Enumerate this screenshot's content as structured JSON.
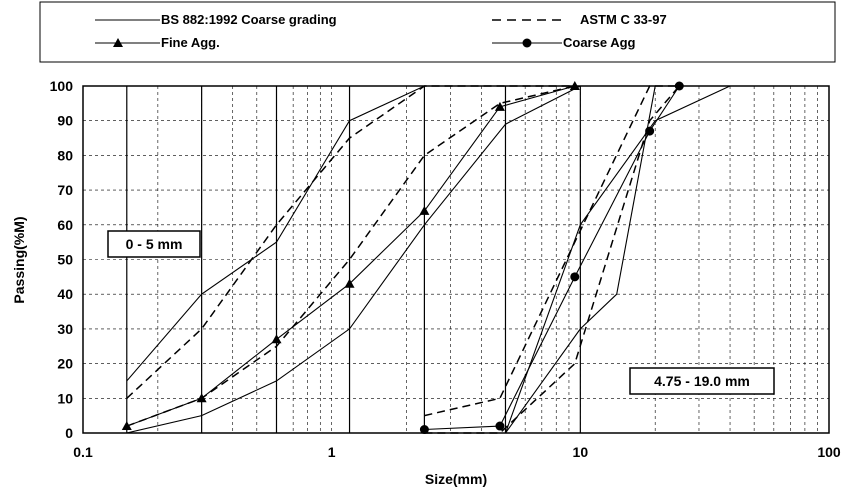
{
  "chart_data": {
    "type": "line",
    "xlabel": "Size(mm)",
    "ylabel": "Passing(%M)",
    "xscale": "log",
    "xlim": [
      0.1,
      100
    ],
    "ylim": [
      0,
      100
    ],
    "x_ticks": [
      "0.1",
      "1",
      "10",
      "100"
    ],
    "y_ticks": [
      "0",
      "10",
      "20",
      "30",
      "40",
      "50",
      "60",
      "70",
      "80",
      "90",
      "100"
    ],
    "grid": true,
    "legend": {
      "placement": "top",
      "entries": [
        {
          "label": "BS 882:1992 Coarse grading",
          "style": "solid"
        },
        {
          "label": "ASTM C 33-97",
          "style": "dashed"
        },
        {
          "label": "Fine Agg.",
          "style": "triangle"
        },
        {
          "label": "Coarse Agg",
          "style": "circle"
        }
      ]
    },
    "annotations": [
      "0 - 5 mm",
      "4.75 - 19.0 mm"
    ],
    "vertical_lines": [
      0.15,
      0.3,
      0.6,
      1.18,
      2.36,
      5,
      10
    ],
    "series": [
      {
        "name": "BS 882:1992 Coarse grading",
        "style": "solid",
        "x": [
          0.15,
          0.3,
          0.6,
          1.18,
          2.36,
          5,
          10
        ],
        "y": [
          15,
          40,
          55,
          90,
          100,
          100,
          100
        ]
      },
      {
        "name": "BS 882:1992 Coarse grading",
        "style": "solid",
        "x": [
          0.15,
          0.3,
          0.6,
          1.18,
          2.36,
          5,
          10
        ],
        "y": [
          0,
          5,
          15,
          30,
          60,
          89,
          100
        ]
      },
      {
        "name": "ASTM C 33-97",
        "style": "dashed",
        "x": [
          0.15,
          0.3,
          0.6,
          1.18,
          2.36,
          4.75,
          9.5
        ],
        "y": [
          10,
          30,
          60,
          85,
          100,
          100,
          100
        ]
      },
      {
        "name": "ASTM C 33-97",
        "style": "dashed",
        "x": [
          0.15,
          0.3,
          0.6,
          1.18,
          2.36,
          4.75,
          9.5
        ],
        "y": [
          2,
          10,
          25,
          50,
          80,
          95,
          100
        ]
      },
      {
        "name": "BS 882:1992 Coarse grading",
        "style": "solid",
        "x": [
          2.36,
          5,
          10,
          20,
          40
        ],
        "y": [
          0,
          0,
          60,
          90,
          100
        ]
      },
      {
        "name": "BS 882:1992 Coarse grading",
        "style": "solid",
        "x": [
          2.36,
          5,
          10,
          14,
          20
        ],
        "y": [
          0,
          0,
          30,
          40,
          100
        ]
      },
      {
        "name": "ASTM C 33-97",
        "style": "dashed",
        "x": [
          2.36,
          4.75,
          9.5,
          19,
          25
        ],
        "y": [
          5,
          10,
          55,
          100,
          100
        ]
      },
      {
        "name": "ASTM C 33-97",
        "style": "dashed",
        "x": [
          2.36,
          4.75,
          9.5,
          19,
          25
        ],
        "y": [
          0,
          0,
          20,
          90,
          100
        ]
      },
      {
        "name": "Fine Agg.",
        "style": "triangle",
        "x": [
          0.15,
          0.3,
          0.6,
          1.18,
          2.36,
          4.75,
          9.5
        ],
        "y": [
          2,
          10,
          27,
          43,
          64,
          94,
          100
        ]
      },
      {
        "name": "Coarse Agg",
        "style": "circle",
        "x": [
          2.36,
          4.75,
          9.5,
          19,
          25
        ],
        "y": [
          1,
          2,
          45,
          87,
          100
        ]
      }
    ]
  }
}
